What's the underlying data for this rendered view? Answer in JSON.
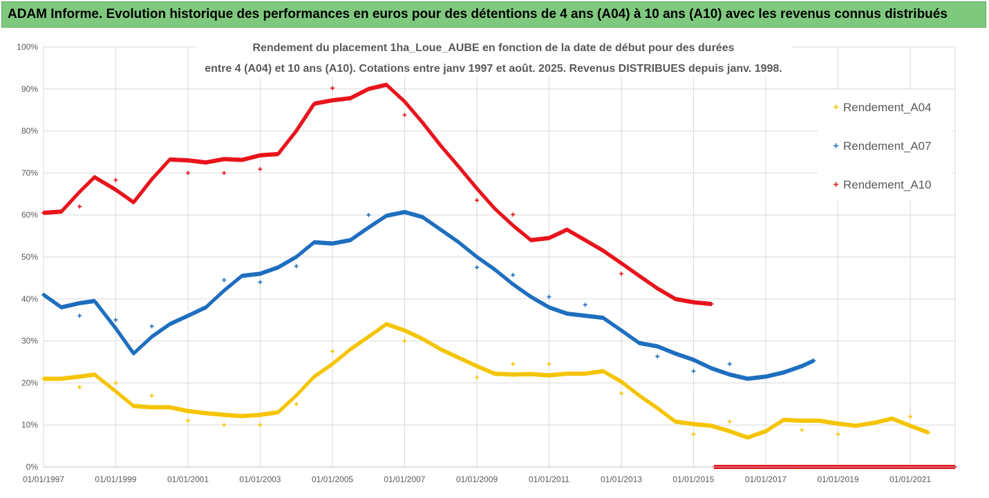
{
  "header": {
    "title": "ADAM Informe. Evolution historique des performances en euros pour des détentions de 4 ans (A04) à 10 ans (A10) avec les revenus connus distribués"
  },
  "chart_data": {
    "type": "scatter",
    "title_lines": [
      "Rendement du placement 1ha_Loue_AUBE en fonction de la date de début pour des durées",
      "entre 4 (A04) et 10 ans (A10). Cotations entre janv 1997 et août. 2025. Revenus DISTRIBUES depuis janv. 1998."
    ],
    "xlabel": "",
    "ylabel": "",
    "x_range": [
      "1997-01-01",
      "2022-03-31"
    ],
    "y_range": [
      0,
      1
    ],
    "yticks": [
      "0%",
      "10%",
      "20%",
      "30%",
      "40%",
      "50%",
      "60%",
      "70%",
      "80%",
      "90%",
      "100%"
    ],
    "xticks": [
      "01/01/1997",
      "01/01/1999",
      "01/01/2001",
      "01/01/2003",
      "01/01/2005",
      "01/01/2007",
      "01/01/2009",
      "01/01/2011",
      "01/01/2013",
      "01/01/2015",
      "01/01/2017",
      "01/01/2019",
      "01/01/2021"
    ],
    "grid": true,
    "legend_position": "right",
    "series": [
      {
        "name": "Rendement_A04",
        "color": "#f5c400",
        "points": [
          [
            "1997-01-01",
            0.21
          ],
          [
            "1997-07-01",
            0.21
          ],
          [
            "1998-01-01",
            0.215
          ],
          [
            "1998-06-01",
            0.22
          ],
          [
            "1999-01-01",
            0.18
          ],
          [
            "1999-07-01",
            0.145
          ],
          [
            "2000-01-01",
            0.142
          ],
          [
            "2000-07-01",
            0.142
          ],
          [
            "2001-01-01",
            0.133
          ],
          [
            "2001-07-01",
            0.128
          ],
          [
            "2002-01-01",
            0.124
          ],
          [
            "2002-07-01",
            0.121
          ],
          [
            "2003-01-01",
            0.124
          ],
          [
            "2003-07-01",
            0.13
          ],
          [
            "2004-01-01",
            0.17
          ],
          [
            "2004-07-01",
            0.215
          ],
          [
            "2005-01-01",
            0.245
          ],
          [
            "2005-07-01",
            0.28
          ],
          [
            "2006-01-01",
            0.31
          ],
          [
            "2006-07-01",
            0.34
          ],
          [
            "2007-01-01",
            0.325
          ],
          [
            "2007-07-01",
            0.305
          ],
          [
            "2008-01-01",
            0.28
          ],
          [
            "2008-07-01",
            0.26
          ],
          [
            "2009-01-01",
            0.24
          ],
          [
            "2009-07-01",
            0.222
          ],
          [
            "2010-01-01",
            0.22
          ],
          [
            "2010-07-01",
            0.221
          ],
          [
            "2011-01-01",
            0.218
          ],
          [
            "2011-07-01",
            0.222
          ],
          [
            "2012-01-01",
            0.222
          ],
          [
            "2012-07-01",
            0.228
          ],
          [
            "2013-01-01",
            0.203
          ],
          [
            "2013-07-01",
            0.17
          ],
          [
            "2014-01-01",
            0.14
          ],
          [
            "2014-07-01",
            0.108
          ],
          [
            "2015-01-01",
            0.102
          ],
          [
            "2015-07-01",
            0.098
          ],
          [
            "2016-01-01",
            0.085
          ],
          [
            "2016-07-01",
            0.07
          ],
          [
            "2017-01-01",
            0.085
          ],
          [
            "2017-07-01",
            0.112
          ],
          [
            "2018-01-01",
            0.11
          ],
          [
            "2018-07-01",
            0.11
          ],
          [
            "2019-01-01",
            0.103
          ],
          [
            "2019-07-01",
            0.098
          ],
          [
            "2020-01-01",
            0.105
          ],
          [
            "2020-07-01",
            0.115
          ],
          [
            "2021-01-01",
            0.098
          ],
          [
            "2021-07-01",
            0.082
          ]
        ],
        "outliers": [
          [
            "1998-01-01",
            0.19
          ],
          [
            "1999-01-01",
            0.2
          ],
          [
            "2000-01-01",
            0.17
          ],
          [
            "2001-01-01",
            0.11
          ],
          [
            "2002-01-01",
            0.1
          ],
          [
            "2003-01-01",
            0.1
          ],
          [
            "2004-01-01",
            0.15
          ],
          [
            "2005-01-01",
            0.275
          ],
          [
            "2007-01-01",
            0.3
          ],
          [
            "2009-01-01",
            0.213
          ],
          [
            "2010-01-01",
            0.245
          ],
          [
            "2011-01-01",
            0.245
          ],
          [
            "2013-01-01",
            0.175
          ],
          [
            "2015-01-01",
            0.078
          ],
          [
            "2016-01-01",
            0.108
          ],
          [
            "2018-01-01",
            0.088
          ],
          [
            "2019-01-01",
            0.078
          ],
          [
            "2021-01-01",
            0.12
          ]
        ]
      },
      {
        "name": "Rendement_A07",
        "color": "#1f6fbf",
        "points": [
          [
            "1997-01-01",
            0.41
          ],
          [
            "1997-07-01",
            0.38
          ],
          [
            "1998-01-01",
            0.39
          ],
          [
            "1998-06-01",
            0.395
          ],
          [
            "1999-01-01",
            0.33
          ],
          [
            "1999-07-01",
            0.27
          ],
          [
            "2000-01-01",
            0.31
          ],
          [
            "2000-07-01",
            0.34
          ],
          [
            "2001-01-01",
            0.36
          ],
          [
            "2001-07-01",
            0.38
          ],
          [
            "2002-01-01",
            0.42
          ],
          [
            "2002-07-01",
            0.455
          ],
          [
            "2003-01-01",
            0.46
          ],
          [
            "2003-07-01",
            0.475
          ],
          [
            "2004-01-01",
            0.5
          ],
          [
            "2004-07-01",
            0.535
          ],
          [
            "2005-01-01",
            0.532
          ],
          [
            "2005-07-01",
            0.54
          ],
          [
            "2006-01-01",
            0.57
          ],
          [
            "2006-07-01",
            0.598
          ],
          [
            "2007-01-01",
            0.607
          ],
          [
            "2007-07-01",
            0.595
          ],
          [
            "2008-01-01",
            0.565
          ],
          [
            "2008-07-01",
            0.535
          ],
          [
            "2009-01-01",
            0.5
          ],
          [
            "2009-07-01",
            0.47
          ],
          [
            "2010-01-01",
            0.435
          ],
          [
            "2010-07-01",
            0.405
          ],
          [
            "2011-01-01",
            0.38
          ],
          [
            "2011-07-01",
            0.365
          ],
          [
            "2012-01-01",
            0.36
          ],
          [
            "2012-07-01",
            0.355
          ],
          [
            "2013-01-01",
            0.325
          ],
          [
            "2013-07-01",
            0.295
          ],
          [
            "2014-01-01",
            0.287
          ],
          [
            "2014-07-01",
            0.27
          ],
          [
            "2015-01-01",
            0.255
          ],
          [
            "2015-07-01",
            0.235
          ],
          [
            "2016-01-01",
            0.22
          ],
          [
            "2016-07-01",
            0.21
          ],
          [
            "2017-01-01",
            0.215
          ],
          [
            "2017-07-01",
            0.225
          ],
          [
            "2018-01-01",
            0.24
          ],
          [
            "2018-05-01",
            0.253
          ]
        ],
        "outliers": [
          [
            "1998-01-01",
            0.36
          ],
          [
            "1999-01-01",
            0.35
          ],
          [
            "2000-01-01",
            0.335
          ],
          [
            "2002-01-01",
            0.445
          ],
          [
            "2003-01-01",
            0.44
          ],
          [
            "2004-01-01",
            0.478
          ],
          [
            "2006-01-01",
            0.6
          ],
          [
            "2009-01-01",
            0.475
          ],
          [
            "2010-01-01",
            0.457
          ],
          [
            "2011-01-01",
            0.405
          ],
          [
            "2012-01-01",
            0.386
          ],
          [
            "2014-01-01",
            0.263
          ],
          [
            "2015-01-01",
            0.228
          ],
          [
            "2016-01-01",
            0.245
          ]
        ]
      },
      {
        "name": "Rendement_A10",
        "color": "#e8141c",
        "points": [
          [
            "1997-01-01",
            0.605
          ],
          [
            "1997-07-01",
            0.608
          ],
          [
            "1998-01-01",
            0.655
          ],
          [
            "1998-06-01",
            0.69
          ],
          [
            "1999-01-01",
            0.66
          ],
          [
            "1999-07-01",
            0.63
          ],
          [
            "2000-01-01",
            0.685
          ],
          [
            "2000-07-01",
            0.732
          ],
          [
            "2001-01-01",
            0.73
          ],
          [
            "2001-07-01",
            0.725
          ],
          [
            "2002-01-01",
            0.733
          ],
          [
            "2002-07-01",
            0.731
          ],
          [
            "2003-01-01",
            0.742
          ],
          [
            "2003-07-01",
            0.745
          ],
          [
            "2004-01-01",
            0.8
          ],
          [
            "2004-07-01",
            0.865
          ],
          [
            "2005-01-01",
            0.873
          ],
          [
            "2005-07-01",
            0.878
          ],
          [
            "2006-01-01",
            0.9
          ],
          [
            "2006-07-01",
            0.91
          ],
          [
            "2007-01-01",
            0.87
          ],
          [
            "2007-07-01",
            0.82
          ],
          [
            "2008-01-01",
            0.765
          ],
          [
            "2008-07-01",
            0.715
          ],
          [
            "2009-01-01",
            0.663
          ],
          [
            "2009-07-01",
            0.615
          ],
          [
            "2010-01-01",
            0.575
          ],
          [
            "2010-07-01",
            0.54
          ],
          [
            "2011-01-01",
            0.545
          ],
          [
            "2011-07-01",
            0.565
          ],
          [
            "2012-01-01",
            0.54
          ],
          [
            "2012-07-01",
            0.515
          ],
          [
            "2013-01-01",
            0.485
          ],
          [
            "2013-07-01",
            0.455
          ],
          [
            "2014-01-01",
            0.425
          ],
          [
            "2014-07-01",
            0.4
          ],
          [
            "2015-01-01",
            0.392
          ],
          [
            "2015-07-01",
            0.388
          ]
        ],
        "outliers": [
          [
            "1998-01-01",
            0.62
          ],
          [
            "1999-01-01",
            0.683
          ],
          [
            "2001-01-01",
            0.7
          ],
          [
            "2002-01-01",
            0.7
          ],
          [
            "2003-01-01",
            0.709
          ],
          [
            "2005-01-01",
            0.902
          ],
          [
            "2007-01-01",
            0.838
          ],
          [
            "2009-01-01",
            0.635
          ],
          [
            "2010-01-01",
            0.601
          ],
          [
            "2013-01-01",
            0.46
          ]
        ],
        "flat_segment": {
          "from": "2015-08-01",
          "to": "2022-03-31",
          "value": 0
        }
      }
    ]
  }
}
